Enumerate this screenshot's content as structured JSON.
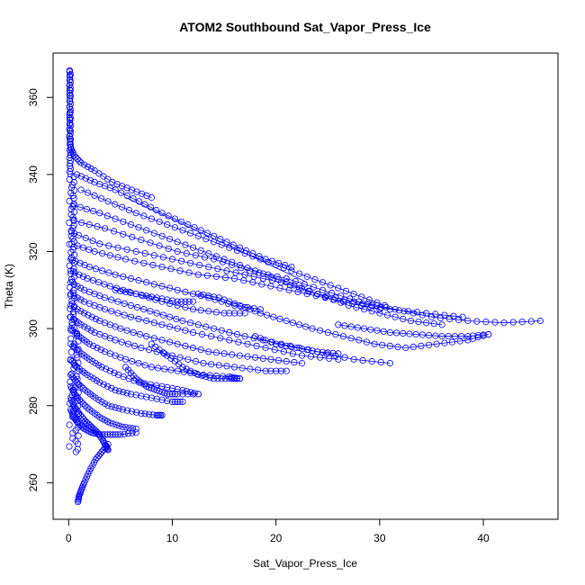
{
  "chart_data": {
    "type": "scatter",
    "title": "ATOM2 Southbound Sat_Vapor_Press_Ice",
    "xlabel": "Sat_Vapor_Press_Ice",
    "ylabel": "Theta (K)",
    "xlim": [
      -1.5,
      47.2
    ],
    "ylim": [
      250.5,
      371.5
    ],
    "x_ticks": [
      0,
      10,
      20,
      30,
      40
    ],
    "y_ticks": [
      260,
      280,
      300,
      320,
      340,
      360
    ],
    "grid": false,
    "color": "#0000ff",
    "marker": "open-circle",
    "lines_connecting": true,
    "profiles": [
      [
        [
          0.1,
          367
        ],
        [
          0.1,
          362
        ],
        [
          0.1,
          356
        ],
        [
          0.1,
          350
        ],
        [
          0.2,
          347
        ],
        [
          0.5,
          345
        ],
        [
          1.2,
          343
        ],
        [
          2.5,
          341
        ],
        [
          4.2,
          338
        ],
        [
          6.1,
          336
        ],
        [
          8.0,
          334
        ]
      ],
      [
        [
          0.8,
          340
        ],
        [
          2.5,
          338
        ],
        [
          4.5,
          336
        ],
        [
          6.8,
          333
        ],
        [
          9.0,
          330
        ],
        [
          11.5,
          327
        ],
        [
          14.0,
          324
        ],
        [
          16.5,
          321
        ],
        [
          19.0,
          318
        ],
        [
          21.5,
          316
        ]
      ],
      [
        [
          1.2,
          336
        ],
        [
          3.8,
          333
        ],
        [
          6.5,
          330
        ],
        [
          9.5,
          327
        ],
        [
          12.5,
          324
        ],
        [
          15.5,
          321
        ],
        [
          18.5,
          318
        ],
        [
          21.5,
          315
        ],
        [
          24.5,
          312
        ],
        [
          27.5,
          309
        ],
        [
          30.5,
          306
        ]
      ],
      [
        [
          0.5,
          332
        ],
        [
          3.0,
          330
        ],
        [
          6.0,
          327
        ],
        [
          9.0,
          324
        ],
        [
          12.0,
          321
        ],
        [
          15.0,
          318
        ],
        [
          18.0,
          315
        ],
        [
          21.0,
          312
        ],
        [
          24.0,
          309
        ],
        [
          27.0,
          306
        ],
        [
          30.0,
          304
        ],
        [
          33.0,
          302
        ],
        [
          36.0,
          301
        ]
      ],
      [
        [
          0.5,
          328
        ],
        [
          3.5,
          326
        ],
        [
          7.0,
          323
        ],
        [
          10.5,
          320
        ],
        [
          14.0,
          318
        ],
        [
          17.5,
          315
        ],
        [
          21.0,
          313
        ],
        [
          24.5,
          310
        ],
        [
          28.0,
          307
        ],
        [
          31.5,
          305
        ],
        [
          35.0,
          303
        ],
        [
          38.5,
          302
        ],
        [
          42.0,
          301.5
        ],
        [
          45.5,
          302
        ]
      ],
      [
        [
          0.3,
          325
        ],
        [
          3.0,
          322
        ],
        [
          6.5,
          320
        ],
        [
          10.0,
          318
        ],
        [
          13.5,
          316
        ],
        [
          17.0,
          314
        ],
        [
          20.5,
          312
        ],
        [
          24.0,
          309
        ],
        [
          27.5,
          307
        ],
        [
          31.0,
          305
        ],
        [
          34.5,
          304
        ],
        [
          38.0,
          303
        ]
      ],
      [
        [
          0.3,
          322
        ],
        [
          2.5,
          320
        ],
        [
          5.5,
          318
        ],
        [
          9.0,
          316
        ],
        [
          12.5,
          314
        ],
        [
          16.0,
          313
        ],
        [
          19.5,
          311
        ],
        [
          23.0,
          309
        ],
        [
          26.5,
          307
        ],
        [
          30.0,
          305
        ]
      ],
      [
        [
          0.2,
          318
        ],
        [
          2.0,
          316
        ],
        [
          4.5,
          314
        ],
        [
          7.5,
          312
        ],
        [
          10.5,
          310
        ],
        [
          13.5,
          308
        ],
        [
          16.0,
          306
        ],
        [
          18.5,
          305
        ]
      ],
      [
        [
          0.2,
          315
        ],
        [
          1.8,
          313
        ],
        [
          4.0,
          311
        ],
        [
          6.5,
          309
        ],
        [
          9.0,
          307
        ],
        [
          12.0,
          305
        ],
        [
          15.0,
          304
        ],
        [
          17.0,
          304
        ]
      ],
      [
        [
          0.2,
          312
        ],
        [
          1.5,
          310
        ],
        [
          3.5,
          308
        ],
        [
          6.0,
          306
        ],
        [
          8.5,
          304
        ],
        [
          11.0,
          302
        ],
        [
          14.0,
          300
        ],
        [
          17.0,
          298
        ],
        [
          20.5,
          296
        ],
        [
          24.0,
          294
        ],
        [
          27.5,
          292
        ],
        [
          31.0,
          291
        ]
      ],
      [
        [
          0.2,
          309
        ],
        [
          1.5,
          307
        ],
        [
          3.5,
          305
        ],
        [
          6.0,
          303
        ],
        [
          9.0,
          301
        ],
        [
          12.0,
          299
        ],
        [
          15.5,
          297
        ],
        [
          19.0,
          295
        ],
        [
          22.5,
          293
        ],
        [
          26.0,
          292
        ]
      ],
      [
        [
          0.2,
          306
        ],
        [
          1.5,
          304
        ],
        [
          3.0,
          302
        ],
        [
          5.0,
          300
        ],
        [
          7.5,
          298
        ],
        [
          10.5,
          296
        ],
        [
          13.5,
          294
        ],
        [
          16.5,
          293
        ],
        [
          19.5,
          292
        ],
        [
          22.5,
          291
        ]
      ],
      [
        [
          0.2,
          303
        ],
        [
          1.2,
          301
        ],
        [
          2.5,
          299
        ],
        [
          4.5,
          297
        ],
        [
          7.0,
          295
        ],
        [
          10.0,
          293
        ],
        [
          13.0,
          291
        ],
        [
          16.0,
          290
        ],
        [
          19.0,
          289
        ],
        [
          21.0,
          289
        ]
      ],
      [
        [
          0.2,
          300
        ],
        [
          1.0,
          298
        ],
        [
          2.0,
          296
        ],
        [
          3.5,
          294
        ],
        [
          5.5,
          292
        ],
        [
          8.0,
          290
        ],
        [
          10.5,
          289
        ],
        [
          13.0,
          288
        ],
        [
          15.5,
          287.5
        ],
        [
          16.5,
          287
        ]
      ],
      [
        [
          0.2,
          296
        ],
        [
          1.0,
          294
        ],
        [
          2.0,
          292
        ],
        [
          3.2,
          290
        ],
        [
          4.8,
          288
        ],
        [
          6.8,
          286
        ],
        [
          9.0,
          285
        ],
        [
          11.0,
          284
        ],
        [
          12.5,
          283
        ]
      ],
      [
        [
          0.2,
          292
        ],
        [
          0.8,
          290
        ],
        [
          1.8,
          288
        ],
        [
          3.0,
          286
        ],
        [
          4.5,
          284
        ],
        [
          6.0,
          283
        ],
        [
          8.0,
          282
        ],
        [
          10.0,
          281
        ],
        [
          11.0,
          281
        ]
      ],
      [
        [
          0.2,
          288
        ],
        [
          0.8,
          286
        ],
        [
          1.6,
          284
        ],
        [
          2.6,
          282
        ],
        [
          3.8,
          280
        ],
        [
          5.2,
          279
        ],
        [
          7.0,
          278
        ],
        [
          8.5,
          277.5
        ],
        [
          9.0,
          277.5
        ]
      ],
      [
        [
          0.2,
          285
        ],
        [
          0.6,
          283
        ],
        [
          1.2,
          281
        ],
        [
          2.0,
          279
        ],
        [
          3.0,
          277
        ],
        [
          4.0,
          275.5
        ],
        [
          5.2,
          274.5
        ],
        [
          6.5,
          274
        ]
      ],
      [
        [
          0.2,
          282
        ],
        [
          0.5,
          280
        ],
        [
          1.0,
          278
        ],
        [
          1.6,
          276
        ],
        [
          2.2,
          274.5
        ],
        [
          2.8,
          273
        ],
        [
          3.3,
          271
        ],
        [
          3.6,
          269.5
        ],
        [
          3.8,
          268.5
        ]
      ],
      [
        [
          0.2,
          279
        ],
        [
          0.5,
          277
        ],
        [
          0.9,
          275.5
        ],
        [
          1.5,
          274
        ],
        [
          2.2,
          273
        ],
        [
          3.0,
          272.5
        ],
        [
          4.0,
          272.5
        ],
        [
          5.0,
          272.5
        ],
        [
          6.5,
          273
        ]
      ],
      [
        [
          3.8,
          270
        ],
        [
          3.2,
          268
        ],
        [
          2.6,
          266
        ],
        [
          2.0,
          263
        ],
        [
          1.5,
          260
        ],
        [
          1.2,
          258
        ],
        [
          1.0,
          256.5
        ],
        [
          0.9,
          255
        ]
      ],
      [
        [
          12.5,
          309
        ],
        [
          14.5,
          308
        ],
        [
          16.5,
          306
        ],
        [
          18.5,
          304
        ],
        [
          21.0,
          302
        ],
        [
          23.5,
          300
        ],
        [
          26.5,
          298
        ],
        [
          29.5,
          296
        ],
        [
          32.5,
          295
        ],
        [
          35.5,
          296
        ],
        [
          38.5,
          297
        ],
        [
          40.5,
          298.5
        ]
      ],
      [
        [
          26.0,
          301
        ],
        [
          28.5,
          300
        ],
        [
          31.0,
          299
        ],
        [
          33.5,
          298.5
        ],
        [
          36.0,
          298
        ],
        [
          38.5,
          298
        ],
        [
          40.5,
          298.5
        ]
      ],
      [
        [
          8.0,
          296
        ],
        [
          9.5,
          293
        ],
        [
          11.0,
          290
        ],
        [
          12.5,
          288
        ],
        [
          14.0,
          287
        ],
        [
          15.5,
          287
        ],
        [
          16.5,
          287
        ]
      ],
      [
        [
          5.5,
          290
        ],
        [
          6.5,
          287
        ],
        [
          7.5,
          285
        ],
        [
          8.5,
          284
        ],
        [
          9.5,
          283
        ],
        [
          10.5,
          283
        ],
        [
          12.5,
          283
        ]
      ],
      [
        [
          18.0,
          298
        ],
        [
          20.0,
          296
        ],
        [
          22.0,
          295
        ],
        [
          24.0,
          294
        ],
        [
          26.0,
          293.5
        ]
      ],
      [
        [
          4.5,
          310
        ],
        [
          6.5,
          309
        ],
        [
          8.5,
          308
        ],
        [
          10.5,
          307
        ],
        [
          12.0,
          307
        ]
      ]
    ]
  }
}
